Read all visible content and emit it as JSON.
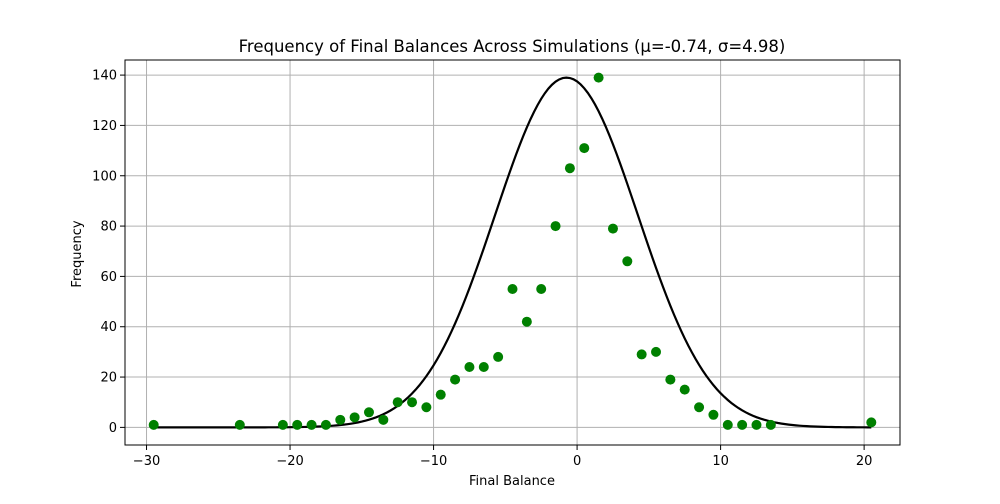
{
  "chart_data": {
    "type": "scatter",
    "title": "Frequency of Final Balances Across Simulations (μ=-0.74, σ=4.98)",
    "xlabel": "Final Balance",
    "ylabel": "Frequency",
    "xlim": [
      -31.5,
      22.5
    ],
    "ylim": [
      -7,
      146
    ],
    "xticks": [
      -30,
      -20,
      -10,
      0,
      10,
      20
    ],
    "yticks": [
      0,
      20,
      40,
      60,
      80,
      100,
      120,
      140
    ],
    "xtick_labels": [
      "−30",
      "−20",
      "−10",
      "0",
      "10",
      "20"
    ],
    "ytick_labels": [
      "0",
      "20",
      "40",
      "60",
      "80",
      "100",
      "120",
      "140"
    ],
    "grid": true,
    "colors": {
      "points": "#008000",
      "curve": "#000000",
      "grid": "#b0b0b0"
    },
    "series": [
      {
        "type": "scatter",
        "x": [
          -29.5,
          -23.5,
          -20.5,
          -19.5,
          -18.5,
          -17.5,
          -16.5,
          -15.5,
          -14.5,
          -13.5,
          -12.5,
          -11.5,
          -10.5,
          -9.5,
          -8.5,
          -7.5,
          -6.5,
          -5.5,
          -4.5,
          -3.5,
          -2.5,
          -1.5,
          -0.5,
          0.5,
          1.5,
          2.5,
          3.5,
          4.5,
          5.5,
          6.5,
          7.5,
          8.5,
          9.5,
          10.5,
          11.5,
          12.5,
          13.5,
          20.5
        ],
        "y": [
          1,
          1,
          1,
          1,
          1,
          1,
          3,
          4,
          6,
          3,
          10,
          10,
          8,
          13,
          19,
          24,
          24,
          28,
          55,
          42,
          55,
          80,
          103,
          111,
          139,
          79,
          66,
          29,
          30,
          19,
          15,
          8,
          5,
          1,
          1,
          1,
          1,
          2
        ]
      },
      {
        "type": "line",
        "mu": -0.74,
        "sigma": 4.98,
        "peak": 139
      }
    ]
  }
}
